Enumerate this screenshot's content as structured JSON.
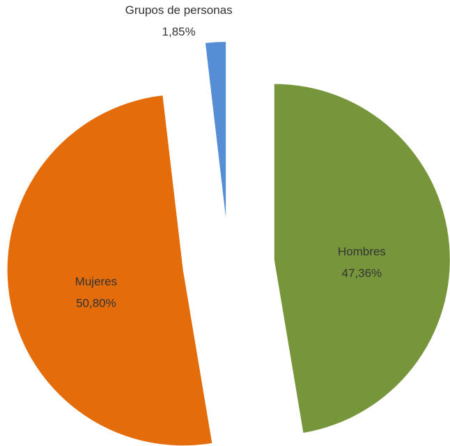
{
  "chart_data": {
    "type": "pie",
    "categories": [
      "Hombres",
      "Mujeres",
      "Grupos de personas"
    ],
    "values": [
      47.36,
      50.8,
      1.85
    ],
    "value_labels": [
      "47,36%",
      "50,80%",
      "1,85%"
    ],
    "colors": [
      "#77963b",
      "#e46c0a",
      "#558ed5"
    ]
  }
}
